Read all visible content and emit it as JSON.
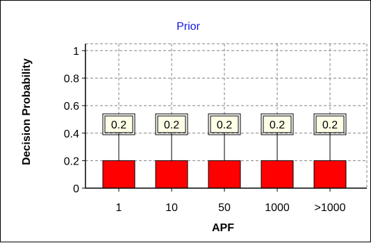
{
  "chart_data": {
    "type": "bar",
    "title": "Prior",
    "xlabel": "APF",
    "ylabel": "Decision Probability",
    "categories": [
      "1",
      "10",
      "50",
      "1000",
      ">1000"
    ],
    "values": [
      0.2,
      0.2,
      0.2,
      0.2,
      0.2
    ],
    "data_labels": [
      "0.2",
      "0.2",
      "0.2",
      "0.2",
      "0.2"
    ],
    "yticks": [
      "0",
      "0.2",
      "0.4",
      "0.6",
      "0.8",
      "1"
    ],
    "ylim": [
      0,
      1.05
    ],
    "grid": true,
    "legend": "none",
    "colors": {
      "title": "#1414e6",
      "bar": "#ff0000",
      "bar_edge": "#000000",
      "label_box": "#ffffe8",
      "grid": "#808080"
    }
  }
}
